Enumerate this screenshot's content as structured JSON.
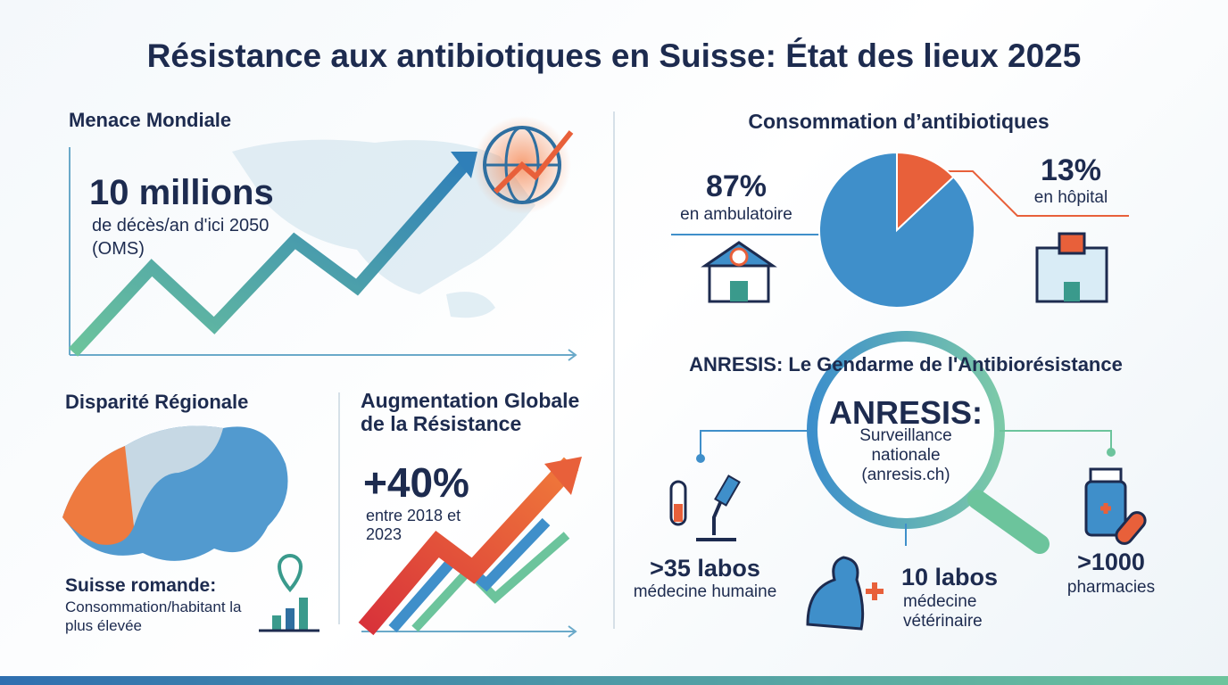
{
  "title": "Résistance aux antibiotiques en Suisse: État des lieux 2025",
  "global_threat": {
    "heading": "Menace Mondiale",
    "figure": "10 millions",
    "caption": "de décès/an d'ici 2050 (OMS)"
  },
  "regional": {
    "heading": "Disparité Régionale",
    "highlight": "Suisse romande:",
    "caption": "Consommation/habitant la plus élevée"
  },
  "resistance_growth": {
    "heading": "Augmentation Globale de la Résistance",
    "figure": "+40%",
    "caption": "entre 2018 et 2023"
  },
  "consumption": {
    "heading": "Consommation d’antibiotiques",
    "values": [
      87,
      13
    ],
    "value_labels": [
      "87%",
      "13%"
    ],
    "labels": [
      "en ambulatoire",
      "en hôpital"
    ],
    "colors": [
      "#3f8fca",
      "#e8603a"
    ]
  },
  "anresis": {
    "heading": "ANRESIS: Le Gendarme de l'Antibiorésistance",
    "name": "ANRESIS:",
    "description": "Surveillance nationale (anresis.ch)",
    "stats": [
      {
        "figure": ">35 labos",
        "label": "médecine humaine"
      },
      {
        "figure": "10 labos",
        "label": "médecine vétérinaire"
      },
      {
        "figure": ">1000",
        "label": "pharmacies"
      }
    ]
  }
}
